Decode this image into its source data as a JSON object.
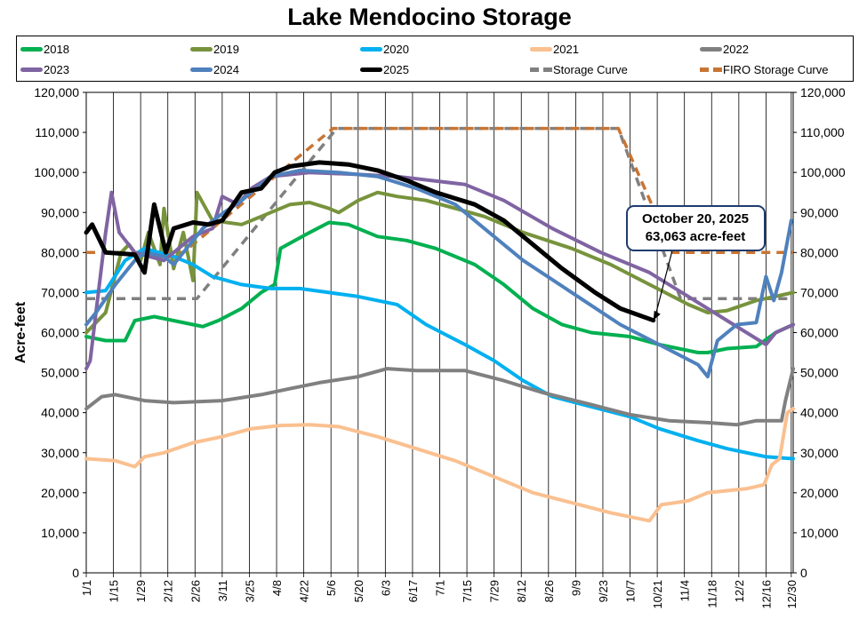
{
  "chart_data": {
    "type": "line",
    "title": "Lake Mendocino Storage",
    "xlabel": "",
    "ylabel": "Acre-feet",
    "ylim": [
      0,
      120000
    ],
    "xlim_days": [
      0,
      364
    ],
    "yticks": [
      "0",
      "10,000",
      "20,000",
      "30,000",
      "40,000",
      "50,000",
      "60,000",
      "70,000",
      "80,000",
      "90,000",
      "100,000",
      "110,000",
      "120,000"
    ],
    "xticks": [
      "1/1",
      "1/15",
      "1/29",
      "2/12",
      "2/26",
      "3/11",
      "3/25",
      "4/8",
      "4/22",
      "5/6",
      "5/20",
      "6/3",
      "6/17",
      "7/1",
      "7/15",
      "7/29",
      "8/12",
      "8/26",
      "9/9",
      "9/23",
      "10/7",
      "10/21",
      "11/4",
      "11/18",
      "12/2",
      "12/16",
      "12/30"
    ],
    "grid": "vertical",
    "legend_position": "top",
    "annotation": {
      "line1": "October 20, 2025",
      "line2": "63,063 acre-feet",
      "day": 292,
      "value": 63063
    },
    "series": [
      {
        "name": "2018",
        "color": "#00b050",
        "dash": false,
        "points": [
          [
            0,
            59000
          ],
          [
            10,
            58000
          ],
          [
            20,
            58000
          ],
          [
            25,
            63000
          ],
          [
            35,
            64000
          ],
          [
            55,
            62000
          ],
          [
            60,
            61500
          ],
          [
            68,
            63000
          ],
          [
            80,
            66000
          ],
          [
            90,
            70000
          ],
          [
            97,
            72000
          ],
          [
            100,
            81000
          ],
          [
            115,
            85000
          ],
          [
            125,
            87500
          ],
          [
            135,
            87000
          ],
          [
            150,
            84000
          ],
          [
            165,
            83000
          ],
          [
            180,
            81000
          ],
          [
            200,
            77000
          ],
          [
            215,
            72000
          ],
          [
            230,
            66000
          ],
          [
            245,
            62000
          ],
          [
            260,
            60000
          ],
          [
            280,
            59000
          ],
          [
            295,
            57000
          ],
          [
            315,
            55000
          ],
          [
            320,
            55000
          ],
          [
            330,
            56000
          ],
          [
            345,
            56500
          ],
          [
            355,
            60000
          ],
          [
            364,
            62000
          ]
        ]
      },
      {
        "name": "2019",
        "color": "#77933c",
        "dash": false,
        "points": [
          [
            0,
            60000
          ],
          [
            10,
            65000
          ],
          [
            18,
            80000
          ],
          [
            22,
            82000
          ],
          [
            28,
            78000
          ],
          [
            32,
            85000
          ],
          [
            38,
            77000
          ],
          [
            40,
            91000
          ],
          [
            45,
            76000
          ],
          [
            50,
            85000
          ],
          [
            55,
            73000
          ],
          [
            57,
            95000
          ],
          [
            65,
            88000
          ],
          [
            80,
            87000
          ],
          [
            90,
            89000
          ],
          [
            105,
            92000
          ],
          [
            115,
            92500
          ],
          [
            125,
            91000
          ],
          [
            130,
            90000
          ],
          [
            140,
            93000
          ],
          [
            150,
            95000
          ],
          [
            160,
            94000
          ],
          [
            175,
            93000
          ],
          [
            190,
            91000
          ],
          [
            205,
            89000
          ],
          [
            225,
            85000
          ],
          [
            250,
            81000
          ],
          [
            270,
            77000
          ],
          [
            290,
            72000
          ],
          [
            310,
            67000
          ],
          [
            320,
            65000
          ],
          [
            330,
            65500
          ],
          [
            345,
            68000
          ],
          [
            364,
            70000
          ]
        ]
      },
      {
        "name": "2020",
        "color": "#00b0f0",
        "dash": false,
        "points": [
          [
            0,
            70000
          ],
          [
            10,
            70500
          ],
          [
            20,
            78000
          ],
          [
            30,
            81000
          ],
          [
            45,
            79000
          ],
          [
            55,
            77000
          ],
          [
            65,
            74000
          ],
          [
            80,
            72000
          ],
          [
            95,
            71000
          ],
          [
            110,
            71000
          ],
          [
            125,
            70000
          ],
          [
            140,
            69000
          ],
          [
            160,
            67000
          ],
          [
            175,
            62000
          ],
          [
            195,
            57000
          ],
          [
            210,
            53000
          ],
          [
            225,
            48000
          ],
          [
            240,
            44000
          ],
          [
            260,
            41500
          ],
          [
            280,
            39000
          ],
          [
            295,
            36000
          ],
          [
            315,
            33000
          ],
          [
            330,
            31000
          ],
          [
            350,
            29000
          ],
          [
            364,
            28500
          ]
        ]
      },
      {
        "name": "2021",
        "color": "#fac090",
        "dash": false,
        "points": [
          [
            0,
            28500
          ],
          [
            15,
            28000
          ],
          [
            25,
            26500
          ],
          [
            30,
            29000
          ],
          [
            40,
            30000
          ],
          [
            55,
            32500
          ],
          [
            70,
            34000
          ],
          [
            85,
            36000
          ],
          [
            100,
            36800
          ],
          [
            115,
            37000
          ],
          [
            130,
            36500
          ],
          [
            150,
            34000
          ],
          [
            170,
            31000
          ],
          [
            190,
            28000
          ],
          [
            210,
            24000
          ],
          [
            230,
            20000
          ],
          [
            250,
            17500
          ],
          [
            270,
            15000
          ],
          [
            290,
            13000
          ],
          [
            296,
            17000
          ],
          [
            310,
            18000
          ],
          [
            320,
            20000
          ],
          [
            340,
            21000
          ],
          [
            349,
            22000
          ],
          [
            353,
            27000
          ],
          [
            357,
            28500
          ],
          [
            361,
            40000
          ],
          [
            364,
            41000
          ]
        ]
      },
      {
        "name": "2022",
        "color": "#808080",
        "dash": false,
        "points": [
          [
            0,
            41000
          ],
          [
            8,
            44000
          ],
          [
            15,
            44500
          ],
          [
            30,
            43000
          ],
          [
            45,
            42500
          ],
          [
            70,
            43000
          ],
          [
            90,
            44500
          ],
          [
            105,
            46000
          ],
          [
            120,
            47500
          ],
          [
            140,
            49000
          ],
          [
            155,
            51000
          ],
          [
            170,
            50500
          ],
          [
            195,
            50500
          ],
          [
            215,
            48000
          ],
          [
            235,
            45000
          ],
          [
            260,
            42000
          ],
          [
            280,
            39500
          ],
          [
            300,
            38000
          ],
          [
            320,
            37500
          ],
          [
            335,
            37000
          ],
          [
            345,
            38000
          ],
          [
            358,
            38000
          ],
          [
            360,
            43000
          ],
          [
            364,
            51000
          ]
        ]
      },
      {
        "name": "2023",
        "color": "#8064a2",
        "dash": false,
        "points": [
          [
            0,
            51000
          ],
          [
            2,
            53000
          ],
          [
            10,
            85000
          ],
          [
            13,
            95000
          ],
          [
            17,
            85000
          ],
          [
            25,
            80000
          ],
          [
            40,
            78000
          ],
          [
            55,
            84000
          ],
          [
            65,
            86000
          ],
          [
            70,
            94000
          ],
          [
            78,
            92000
          ],
          [
            85,
            96000
          ],
          [
            95,
            99000
          ],
          [
            115,
            100000
          ],
          [
            140,
            99500
          ],
          [
            160,
            99000
          ],
          [
            195,
            97000
          ],
          [
            215,
            93000
          ],
          [
            240,
            86000
          ],
          [
            265,
            80000
          ],
          [
            290,
            75000
          ],
          [
            310,
            69000
          ],
          [
            330,
            63000
          ],
          [
            350,
            57000
          ],
          [
            355,
            60000
          ],
          [
            364,
            62000
          ]
        ]
      },
      {
        "name": "2024",
        "color": "#4f81bd",
        "dash": false,
        "points": [
          [
            0,
            62000
          ],
          [
            5,
            65000
          ],
          [
            15,
            72000
          ],
          [
            25,
            78000
          ],
          [
            30,
            80000
          ],
          [
            40,
            79000
          ],
          [
            45,
            77000
          ],
          [
            50,
            80000
          ],
          [
            60,
            86000
          ],
          [
            68,
            89000
          ],
          [
            80,
            93000
          ],
          [
            85,
            95000
          ],
          [
            95,
            99000
          ],
          [
            110,
            100500
          ],
          [
            130,
            100000
          ],
          [
            150,
            99000
          ],
          [
            170,
            96000
          ],
          [
            190,
            92000
          ],
          [
            205,
            86000
          ],
          [
            225,
            78000
          ],
          [
            250,
            70000
          ],
          [
            275,
            62000
          ],
          [
            295,
            57000
          ],
          [
            315,
            52000
          ],
          [
            320,
            49000
          ],
          [
            325,
            58000
          ],
          [
            335,
            62000
          ],
          [
            345,
            62500
          ],
          [
            350,
            74000
          ],
          [
            354,
            68000
          ],
          [
            358,
            75000
          ],
          [
            363,
            88000
          ]
        ]
      },
      {
        "name": "2025",
        "color": "#000000",
        "dash": false,
        "points": [
          [
            0,
            85000
          ],
          [
            3,
            87000
          ],
          [
            10,
            80000
          ],
          [
            25,
            79500
          ],
          [
            30,
            75000
          ],
          [
            35,
            92000
          ],
          [
            41,
            80000
          ],
          [
            45,
            86000
          ],
          [
            55,
            87500
          ],
          [
            63,
            87000
          ],
          [
            70,
            88000
          ],
          [
            80,
            95000
          ],
          [
            90,
            96000
          ],
          [
            97,
            100000
          ],
          [
            105,
            101500
          ],
          [
            120,
            102500
          ],
          [
            135,
            102000
          ],
          [
            150,
            100500
          ],
          [
            165,
            98000
          ],
          [
            180,
            95000
          ],
          [
            200,
            92000
          ],
          [
            215,
            88000
          ],
          [
            230,
            82000
          ],
          [
            245,
            76000
          ],
          [
            262,
            70000
          ],
          [
            275,
            66000
          ],
          [
            292,
            63063
          ]
        ]
      },
      {
        "name": "Storage Curve",
        "color": "#808080",
        "dash": true,
        "points": [
          [
            0,
            68500
          ],
          [
            57,
            68500
          ],
          [
            129,
            111000
          ],
          [
            274,
            111000
          ],
          [
            306,
            68500
          ],
          [
            364,
            68500
          ]
        ]
      },
      {
        "name": "FIRO Storage Curve",
        "color": "#c87533",
        "dash": true,
        "points": [
          [
            0,
            80000
          ],
          [
            50,
            80000
          ],
          [
            127,
            111000
          ],
          [
            274,
            111000
          ],
          [
            302,
            80000
          ],
          [
            364,
            80000
          ]
        ]
      }
    ]
  }
}
